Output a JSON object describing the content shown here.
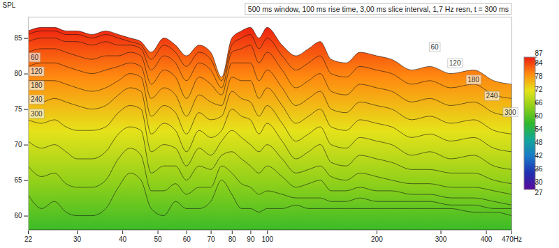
{
  "chart_data": {
    "type": "waterfall",
    "title": "500 ms window, 100 ms rise time, 3,00 ms slice interval, 1,7 Hz resn, t = 300 ms",
    "y_label": "SPL",
    "log": "x",
    "grid": false,
    "xlim": [
      22,
      470
    ],
    "xticks": [
      22,
      30,
      40,
      50,
      60,
      70,
      80,
      90,
      100,
      200,
      300,
      400,
      {
        "value": 470,
        "label": "470Hz"
      }
    ],
    "ylim": [
      58,
      88
    ],
    "yticks": [
      60,
      65,
      70,
      75,
      80,
      85
    ],
    "time_lim": [
      0,
      300
    ],
    "time_ticks": [
      60,
      120,
      180,
      240,
      300
    ],
    "x": [
      22,
      24,
      26,
      28,
      30,
      33,
      36,
      39,
      42,
      45,
      48,
      52,
      56,
      60,
      65,
      70,
      75,
      80,
      85,
      90,
      95,
      100,
      110,
      120,
      130,
      140,
      150,
      165,
      180,
      200,
      220,
      250,
      280,
      320,
      370,
      420,
      470
    ],
    "slices": [
      {
        "t": 0,
        "values": [
          86,
          86.5,
          86.5,
          86,
          86,
          85.5,
          86,
          85.5,
          85,
          84.5,
          83,
          85,
          84,
          82.5,
          84,
          83,
          79.5,
          85,
          86,
          86.5,
          85,
          86.5,
          84,
          82.5,
          83.5,
          84.5,
          82,
          81.5,
          83,
          82.5,
          82,
          80.5,
          81,
          80,
          80.5,
          79,
          78.5
        ]
      },
      {
        "t": 30,
        "values": [
          85.5,
          86,
          86,
          85.5,
          85.5,
          85,
          85.5,
          85,
          84.5,
          84,
          82,
          84,
          83,
          81,
          83,
          82,
          79,
          84,
          85,
          85.5,
          83.5,
          85,
          82.5,
          80.5,
          81.5,
          82.5,
          80,
          79.5,
          81,
          80.5,
          80,
          78.5,
          79,
          78,
          78.5,
          77,
          76.5
        ]
      },
      {
        "t": 60,
        "values": [
          84.5,
          85,
          85,
          84.5,
          84.5,
          84,
          84.5,
          84,
          84,
          83.5,
          80.5,
          82.5,
          81.5,
          79,
          81.5,
          80.5,
          78,
          83,
          83.5,
          84,
          81.5,
          83,
          80.5,
          78,
          79,
          80,
          77.5,
          77,
          78.5,
          78,
          77.5,
          76,
          76.5,
          75.5,
          76,
          74.5,
          74
        ]
      },
      {
        "t": 90,
        "values": [
          83,
          83.5,
          83.5,
          83,
          82.5,
          82,
          82.5,
          82.5,
          83,
          82.5,
          78.5,
          80.5,
          79.5,
          76.5,
          79.5,
          78.5,
          77,
          81.5,
          81.5,
          81.5,
          79,
          80.5,
          78,
          75.5,
          76.5,
          77.5,
          75,
          74.5,
          76,
          75.5,
          75,
          73.5,
          74,
          73,
          73.5,
          72,
          71.5
        ]
      },
      {
        "t": 120,
        "values": [
          81,
          81.5,
          81.5,
          81,
          80.5,
          80,
          80.5,
          81,
          81.5,
          81,
          76.5,
          78,
          77,
          74,
          77,
          76,
          75.5,
          79.5,
          79,
          79,
          76.5,
          78,
          75.5,
          73,
          74,
          75,
          72.5,
          72,
          73.5,
          73,
          72.5,
          71,
          71.5,
          70.5,
          71,
          69.5,
          69
        ]
      },
      {
        "t": 150,
        "values": [
          79,
          79,
          79,
          78.5,
          78,
          77.5,
          78,
          79,
          80,
          79.5,
          74,
          75.5,
          74.5,
          71.5,
          74.5,
          73.5,
          74,
          77.5,
          76.5,
          76,
          74,
          75.5,
          73,
          70.5,
          71.5,
          72.5,
          70,
          69.5,
          71,
          70.5,
          70,
          68.5,
          69,
          68,
          68.5,
          67,
          66.5
        ]
      },
      {
        "t": 180,
        "values": [
          76.5,
          76,
          76.5,
          76,
          75.5,
          75,
          75.5,
          77,
          78,
          77.5,
          71.5,
          73,
          72,
          69,
          72,
          71,
          72,
          75,
          74,
          73.5,
          71.5,
          73,
          70.5,
          68,
          69,
          70,
          67.5,
          67,
          68.5,
          68,
          67.5,
          66.5,
          66.5,
          66,
          66,
          65,
          64.5
        ]
      },
      {
        "t": 210,
        "values": [
          73.5,
          73,
          73.5,
          72.5,
          72,
          72,
          72.5,
          74.5,
          75.5,
          75,
          69,
          70,
          69.5,
          67,
          69.5,
          68.5,
          70.5,
          72,
          71,
          70,
          69,
          70,
          68,
          66,
          66.5,
          67,
          65.5,
          65,
          66,
          65.5,
          65,
          64.5,
          64.5,
          64,
          64,
          63.5,
          63
        ]
      },
      {
        "t": 240,
        "values": [
          70.5,
          69.5,
          70,
          69,
          68,
          68,
          69,
          71.5,
          72.5,
          72,
          66,
          67,
          67,
          65,
          67,
          66.5,
          68.5,
          69,
          68,
          67,
          66,
          67,
          65.5,
          64,
          64.5,
          65,
          63.5,
          63.5,
          64,
          63.5,
          63.5,
          63,
          63,
          62.5,
          62.5,
          62,
          61.5
        ]
      },
      {
        "t": 270,
        "values": [
          67,
          65.5,
          66,
          64.5,
          64,
          64,
          65,
          68,
          69.5,
          68.5,
          63.5,
          63.5,
          64.5,
          63,
          64,
          64,
          67,
          66,
          64.5,
          64,
          63,
          63.5,
          63,
          62.5,
          62.5,
          62.5,
          62,
          62,
          62.5,
          62,
          62,
          62,
          62,
          61.5,
          61.5,
          61,
          61
        ]
      },
      {
        "t": 300,
        "values": [
          63,
          61,
          62,
          60.5,
          60,
          60,
          61,
          64,
          66,
          65,
          61,
          60,
          62,
          61,
          61,
          62,
          65,
          63,
          61,
          61,
          60.5,
          61,
          61,
          61.5,
          61,
          61,
          61,
          61,
          61,
          61,
          61,
          61,
          61,
          61,
          60.5,
          60.5,
          60
        ]
      }
    ],
    "colorbar": {
      "range": [
        27,
        87
      ],
      "ticks": [
        27,
        30,
        36,
        42,
        48,
        54,
        60,
        66,
        72,
        78,
        84,
        87
      ],
      "colors": [
        "#5a0a9a",
        "#1f2fb0",
        "#1a78c8",
        "#12a69a",
        "#2fb82a",
        "#8ed01a",
        "#e6e21a",
        "#ff8a10",
        "#ee1c10"
      ]
    }
  }
}
